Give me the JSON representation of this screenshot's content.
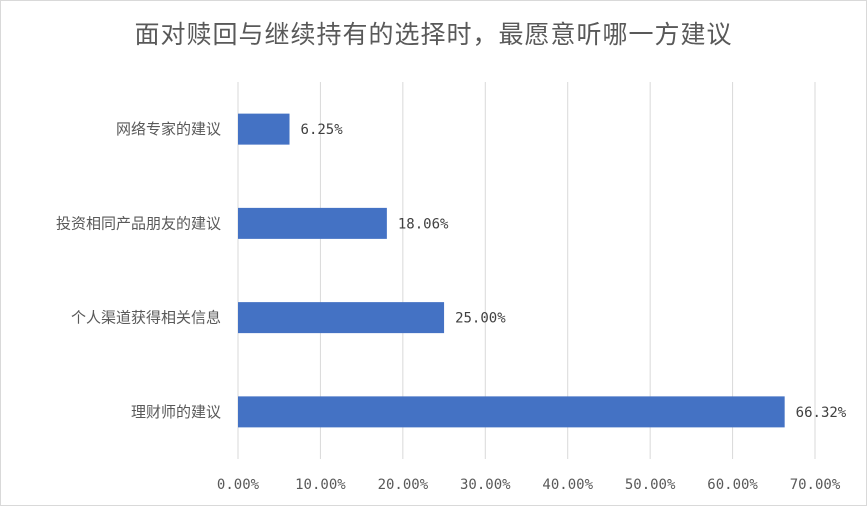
{
  "chart_data": {
    "type": "bar",
    "orientation": "horizontal",
    "title": "面对赎回与继续持有的选择时，最愿意听哪一方建议",
    "categories": [
      "网络专家的建议",
      "投资相同产品朋友的建议",
      "个人渠道获得相关信息",
      "理财师的建议"
    ],
    "values": [
      6.25,
      18.06,
      25.0,
      66.32
    ],
    "value_labels": [
      "6.25%",
      "18.06%",
      "25.00%",
      "66.32%"
    ],
    "xlim": [
      0,
      70
    ],
    "x_ticks": [
      0,
      10,
      20,
      30,
      40,
      50,
      60,
      70
    ],
    "x_tick_labels": [
      "0.00%",
      "10.00%",
      "20.00%",
      "30.00%",
      "40.00%",
      "50.00%",
      "60.00%",
      "70.00%"
    ],
    "xlabel": "",
    "ylabel": "",
    "grid": true,
    "legend": "none",
    "colors": {
      "bar": "#4472c4",
      "grid": "#d9d9d9",
      "axis": "#d9d9d9"
    }
  }
}
